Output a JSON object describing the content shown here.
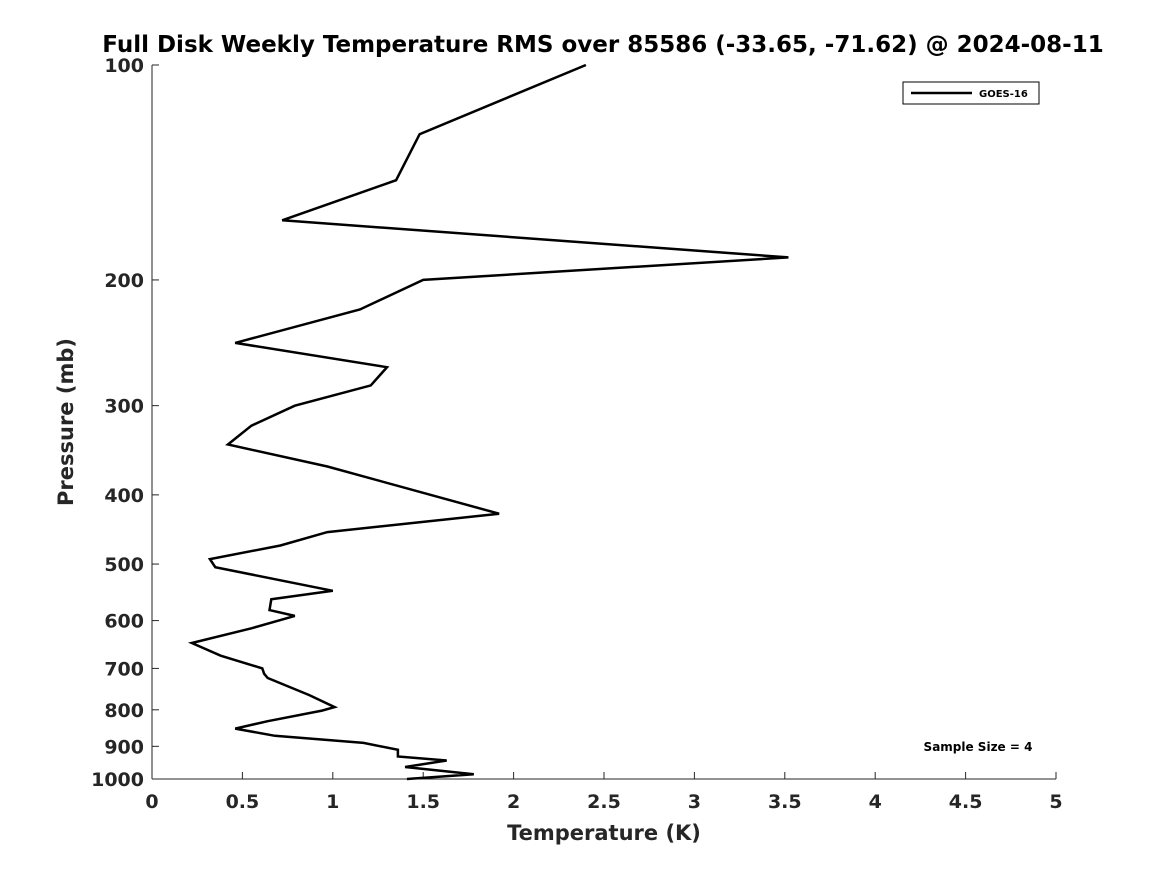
{
  "chart_data": {
    "type": "line",
    "title": "Full Disk Weekly Temperature RMS over 85586 (-33.65, -71.62) @ 2024-08-11",
    "xlabel": "Temperature (K)",
    "ylabel": "Pressure (mb)",
    "xlim": [
      0,
      5
    ],
    "ylim": [
      100,
      1000
    ],
    "y_scale": "log",
    "y_reversed": true,
    "x_ticks": [
      "0",
      "0.5",
      "1",
      "1.5",
      "2",
      "2.5",
      "3",
      "3.5",
      "4",
      "4.5",
      "5"
    ],
    "x_tick_values": [
      0,
      0.5,
      1,
      1.5,
      2,
      2.5,
      3,
      3.5,
      4,
      4.5,
      5
    ],
    "y_ticks": [
      "100",
      "200",
      "300",
      "400",
      "500",
      "600",
      "700",
      "800",
      "900",
      "1000"
    ],
    "y_tick_values": [
      100,
      200,
      300,
      400,
      500,
      600,
      700,
      800,
      900,
      1000
    ],
    "grid": false,
    "legend_position": "top-right",
    "series": [
      {
        "name": "GOES-16",
        "color": "#000000",
        "points": [
          [
            2.4,
            100
          ],
          [
            1.48,
            125
          ],
          [
            1.35,
            145
          ],
          [
            0.72,
            165
          ],
          [
            3.52,
            186
          ],
          [
            1.5,
            200
          ],
          [
            1.15,
            220
          ],
          [
            0.46,
            245
          ],
          [
            1.3,
            265
          ],
          [
            1.21,
            281
          ],
          [
            0.79,
            300
          ],
          [
            0.55,
            320
          ],
          [
            0.42,
            340
          ],
          [
            0.97,
            365
          ],
          [
            1.92,
            425
          ],
          [
            0.97,
            451
          ],
          [
            0.71,
            471
          ],
          [
            0.32,
            492
          ],
          [
            0.35,
            505
          ],
          [
            1.0,
            545
          ],
          [
            0.66,
            560
          ],
          [
            0.65,
            580
          ],
          [
            0.79,
            591
          ],
          [
            0.55,
            615
          ],
          [
            0.22,
            645
          ],
          [
            0.38,
            672
          ],
          [
            0.61,
            700
          ],
          [
            0.62,
            712
          ],
          [
            0.64,
            722
          ],
          [
            0.87,
            763
          ],
          [
            1.01,
            793
          ],
          [
            0.94,
            802
          ],
          [
            0.64,
            830
          ],
          [
            0.46,
            850
          ],
          [
            0.68,
            870
          ],
          [
            1.17,
            890
          ],
          [
            1.36,
            910
          ],
          [
            1.36,
            930
          ],
          [
            1.63,
            942
          ],
          [
            1.4,
            962
          ],
          [
            1.78,
            985
          ],
          [
            1.41,
            1000
          ]
        ]
      }
    ],
    "annotations": [
      "Sample Size = 4"
    ]
  }
}
